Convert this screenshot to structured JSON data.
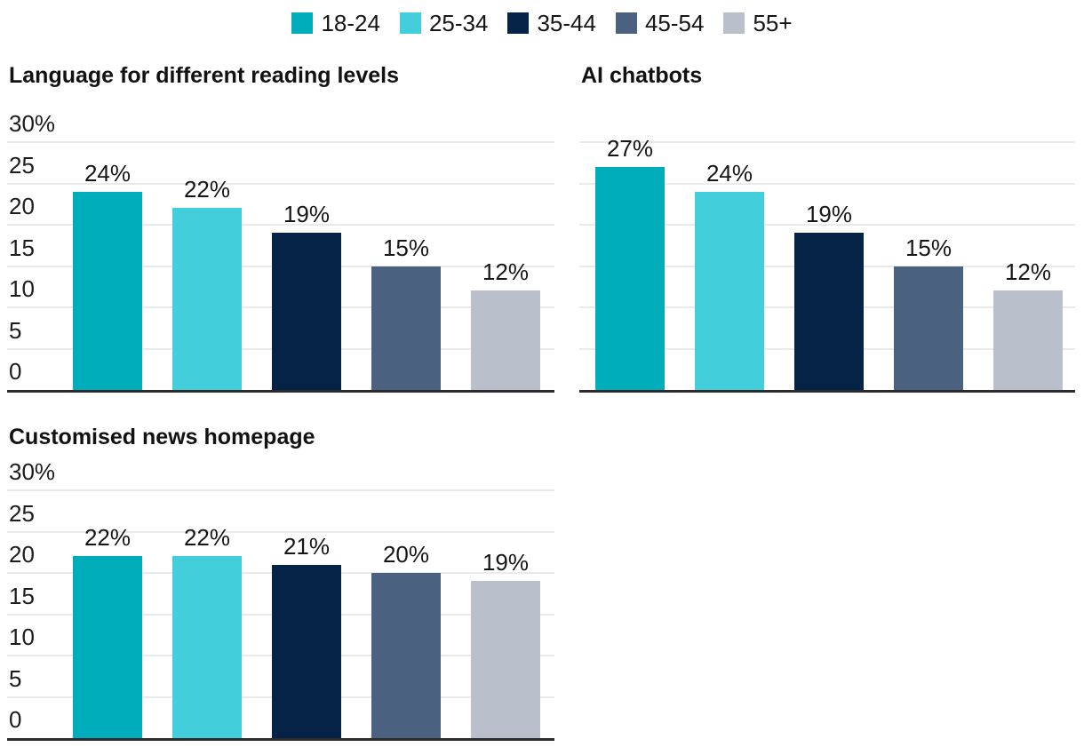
{
  "legend": {
    "items": [
      {
        "label": "18-24",
        "color": "#00ADBA",
        "icon": "swatch-teal"
      },
      {
        "label": "25-34",
        "color": "#43CEDB",
        "icon": "swatch-cyan"
      },
      {
        "label": "35-44",
        "color": "#042347",
        "icon": "swatch-navy"
      },
      {
        "label": "45-54",
        "color": "#4A6280",
        "icon": "swatch-slate"
      },
      {
        "label": "55+",
        "color": "#B9BFCB",
        "icon": "swatch-gray"
      }
    ]
  },
  "chart_data": [
    {
      "type": "bar",
      "title": "Language for different reading levels",
      "categories": [
        "18-24",
        "25-34",
        "35-44",
        "45-54",
        "55+"
      ],
      "values": [
        24,
        22,
        19,
        15,
        12
      ],
      "value_labels": [
        "24%",
        "22%",
        "19%",
        "15%",
        "12%"
      ],
      "xlabel": "",
      "ylabel": "",
      "ylim": [
        0,
        30
      ],
      "grid": true,
      "legend_position": "top-center-shared",
      "show_tick_labels": true,
      "yticks": [
        {
          "value": 30,
          "label": "30%"
        },
        {
          "value": 25,
          "label": "25"
        },
        {
          "value": 20,
          "label": "20"
        },
        {
          "value": 15,
          "label": "15"
        },
        {
          "value": 10,
          "label": "10"
        },
        {
          "value": 5,
          "label": "5"
        },
        {
          "value": 0,
          "label": "0"
        }
      ]
    },
    {
      "type": "bar",
      "title": "AI chatbots",
      "categories": [
        "18-24",
        "25-34",
        "35-44",
        "45-54",
        "55+"
      ],
      "values": [
        27,
        24,
        19,
        15,
        12
      ],
      "value_labels": [
        "27%",
        "24%",
        "19%",
        "15%",
        "12%"
      ],
      "xlabel": "",
      "ylabel": "",
      "ylim": [
        0,
        30
      ],
      "grid": true,
      "legend_position": "top-center-shared",
      "show_tick_labels": false,
      "yticks": [
        {
          "value": 30,
          "label": ""
        },
        {
          "value": 25,
          "label": ""
        },
        {
          "value": 20,
          "label": ""
        },
        {
          "value": 15,
          "label": ""
        },
        {
          "value": 10,
          "label": ""
        },
        {
          "value": 5,
          "label": ""
        },
        {
          "value": 0,
          "label": ""
        }
      ]
    },
    {
      "type": "bar",
      "title": "Customised news homepage",
      "categories": [
        "18-24",
        "25-34",
        "35-44",
        "45-54",
        "55+"
      ],
      "values": [
        22,
        22,
        21,
        20,
        19
      ],
      "value_labels": [
        "22%",
        "22%",
        "21%",
        "20%",
        "19%"
      ],
      "xlabel": "",
      "ylabel": "",
      "ylim": [
        0,
        30
      ],
      "grid": true,
      "legend_position": "top-center-shared",
      "show_tick_labels": true,
      "yticks": [
        {
          "value": 30,
          "label": "30%"
        },
        {
          "value": 25,
          "label": "25"
        },
        {
          "value": 20,
          "label": "20"
        },
        {
          "value": 15,
          "label": "15"
        },
        {
          "value": 10,
          "label": "10"
        },
        {
          "value": 5,
          "label": "5"
        },
        {
          "value": 0,
          "label": "0"
        }
      ]
    }
  ],
  "colors": {
    "background": "#FFFFFF",
    "gridline": "#EAEAEA",
    "baseline": "#2B2B2B",
    "text": "#161616",
    "title": "#121212"
  }
}
